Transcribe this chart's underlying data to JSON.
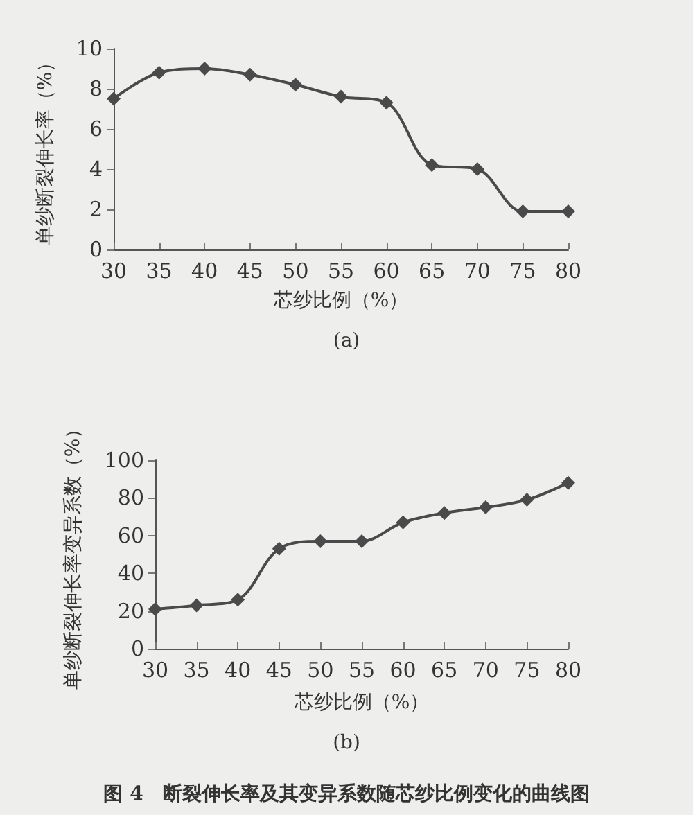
{
  "chart_data": [
    {
      "type": "line",
      "title": "(a)",
      "xlabel": "芯纱比例（%）",
      "ylabel": "单纱断裂伸长率（%）",
      "categories": [
        "30",
        "35",
        "40",
        "45",
        "50",
        "55",
        "60",
        "65",
        "70",
        "75",
        "80"
      ],
      "series": [
        {
          "color": "#4a4a4a",
          "values": [
            7.5,
            8.8,
            9.0,
            8.7,
            8.2,
            7.6,
            7.3,
            4.2,
            4.0,
            1.9,
            1.9
          ]
        }
      ],
      "ylim": [
        0,
        10
      ],
      "yticks": [
        0,
        2,
        4,
        6,
        8,
        10
      ],
      "marker": "diamond",
      "line_style": "solid"
    },
    {
      "type": "line",
      "title": "(b)",
      "xlabel": "芯纱比例（%）",
      "ylabel": "单纱断裂伸长率变异系数（%）",
      "categories": [
        "30",
        "35",
        "40",
        "45",
        "50",
        "55",
        "60",
        "65",
        "70",
        "75",
        "80"
      ],
      "series": [
        {
          "color": "#4a4a4a",
          "values": [
            21,
            23,
            26,
            53,
            57,
            57,
            67,
            72,
            75,
            79,
            88
          ]
        }
      ],
      "ylim": [
        0,
        100
      ],
      "yticks": [
        0,
        20,
        40,
        60,
        80,
        100
      ],
      "marker": "diamond",
      "line_style": "solid",
      "annotations": [
        "图 4　断裂伸长率及其变异系数随芯纱比例变化的曲线图"
      ]
    }
  ]
}
